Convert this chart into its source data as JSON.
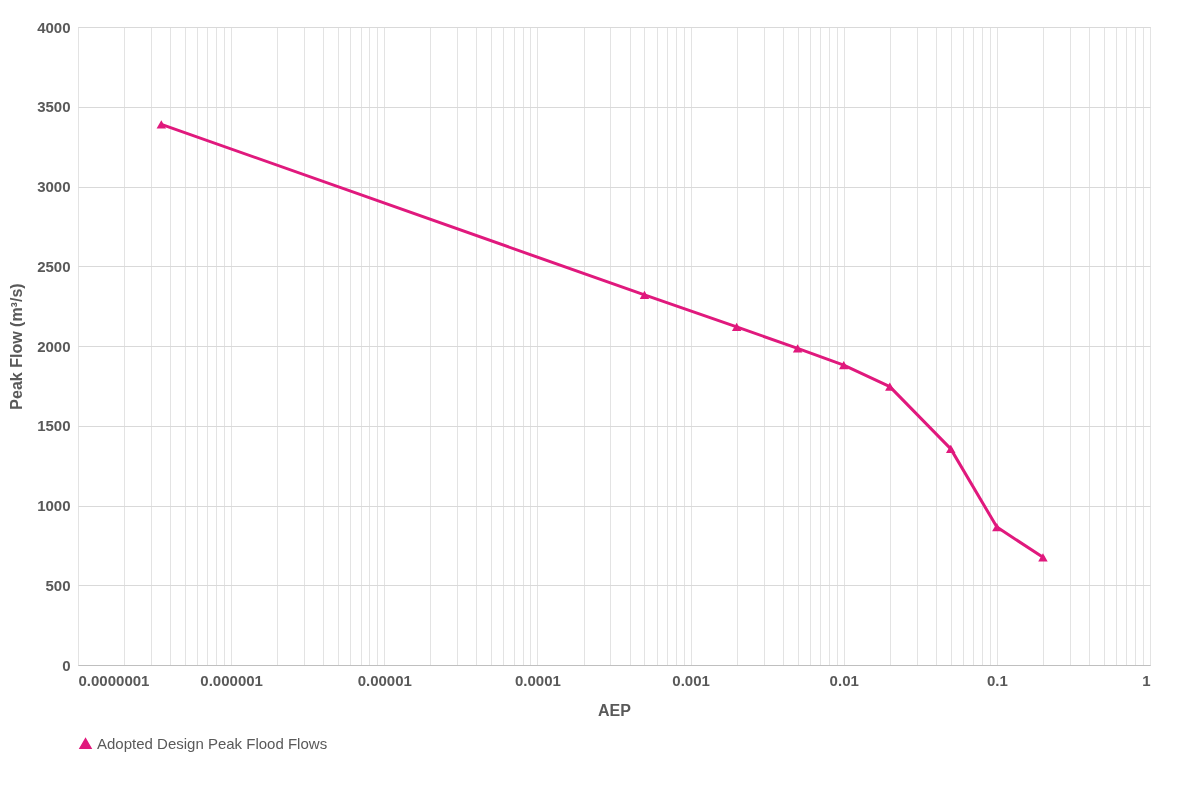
{
  "chart_data": {
    "type": "line",
    "xlabel": "AEP",
    "ylabel": "Peak Flow (m³/s)",
    "log": "x",
    "x": [
      3.5e-07,
      0.0005,
      0.002,
      0.005,
      0.01,
      0.02,
      0.05,
      0.1,
      0.2
    ],
    "series": [
      {
        "name": "Adopted Design Peak Flood Flows",
        "color": "#e0197d",
        "values": [
          3390,
          2320,
          2120,
          1985,
          1880,
          1745,
          1355,
          865,
          675
        ]
      }
    ],
    "xlim": [
      1e-07,
      1
    ],
    "xticks": [
      {
        "value": 1e-07,
        "label": "0.0000001"
      },
      {
        "value": 2e-07,
        "label": null
      },
      {
        "value": 3e-07,
        "label": null
      },
      {
        "value": 4e-07,
        "label": null
      },
      {
        "value": 5e-07,
        "label": null
      },
      {
        "value": 6e-07,
        "label": null
      },
      {
        "value": 7e-07,
        "label": null
      },
      {
        "value": 8e-07,
        "label": null
      },
      {
        "value": 9e-07,
        "label": null
      },
      {
        "value": 1e-06,
        "label": "0.000001"
      },
      {
        "value": 2e-06,
        "label": null
      },
      {
        "value": 3e-06,
        "label": null
      },
      {
        "value": 4e-06,
        "label": null
      },
      {
        "value": 5e-06,
        "label": null
      },
      {
        "value": 6e-06,
        "label": null
      },
      {
        "value": 7e-06,
        "label": null
      },
      {
        "value": 8e-06,
        "label": null
      },
      {
        "value": 9e-06,
        "label": null
      },
      {
        "value": 1e-05,
        "label": "0.00001"
      },
      {
        "value": 2e-05,
        "label": null
      },
      {
        "value": 3e-05,
        "label": null
      },
      {
        "value": 4e-05,
        "label": null
      },
      {
        "value": 5e-05,
        "label": null
      },
      {
        "value": 6e-05,
        "label": null
      },
      {
        "value": 7e-05,
        "label": null
      },
      {
        "value": 8e-05,
        "label": null
      },
      {
        "value": 9e-05,
        "label": null
      },
      {
        "value": 0.0001,
        "label": "0.0001"
      },
      {
        "value": 0.0002,
        "label": null
      },
      {
        "value": 0.0003,
        "label": null
      },
      {
        "value": 0.0004,
        "label": null
      },
      {
        "value": 0.0005,
        "label": null
      },
      {
        "value": 0.0006,
        "label": null
      },
      {
        "value": 0.0007,
        "label": null
      },
      {
        "value": 0.0008,
        "label": null
      },
      {
        "value": 0.0009,
        "label": null
      },
      0.001,
      {
        "value": 0.002,
        "label": null
      },
      {
        "value": 0.003,
        "label": null
      },
      {
        "value": 0.004,
        "label": null
      },
      {
        "value": 0.005,
        "label": null
      },
      {
        "value": 0.006,
        "label": null
      },
      {
        "value": 0.007,
        "label": null
      },
      {
        "value": 0.008,
        "label": null
      },
      {
        "value": 0.009,
        "label": null
      },
      0.01,
      {
        "value": 0.02,
        "label": null
      },
      {
        "value": 0.03,
        "label": null
      },
      {
        "value": 0.04,
        "label": null
      },
      {
        "value": 0.05,
        "label": null
      },
      {
        "value": 0.06,
        "label": null
      },
      {
        "value": 0.07,
        "label": null
      },
      {
        "value": 0.08,
        "label": null
      },
      {
        "value": 0.09,
        "label": null
      },
      0.1,
      {
        "value": 0.2,
        "label": null
      },
      {
        "value": 0.3,
        "label": null
      },
      {
        "value": 0.4,
        "label": null
      },
      {
        "value": 0.5,
        "label": null
      },
      {
        "value": 0.6,
        "label": null
      },
      {
        "value": 0.7,
        "label": null
      },
      {
        "value": 0.8,
        "label": null
      },
      {
        "value": 0.9,
        "label": null
      },
      1
    ],
    "ylim": [
      0,
      4000
    ],
    "yticks": [
      0,
      500,
      1000,
      1500,
      2000,
      2500,
      3000,
      3500,
      4000
    ],
    "grid": true,
    "legend": "bottom",
    "marker": "triangle",
    "line_style": "solid"
  }
}
